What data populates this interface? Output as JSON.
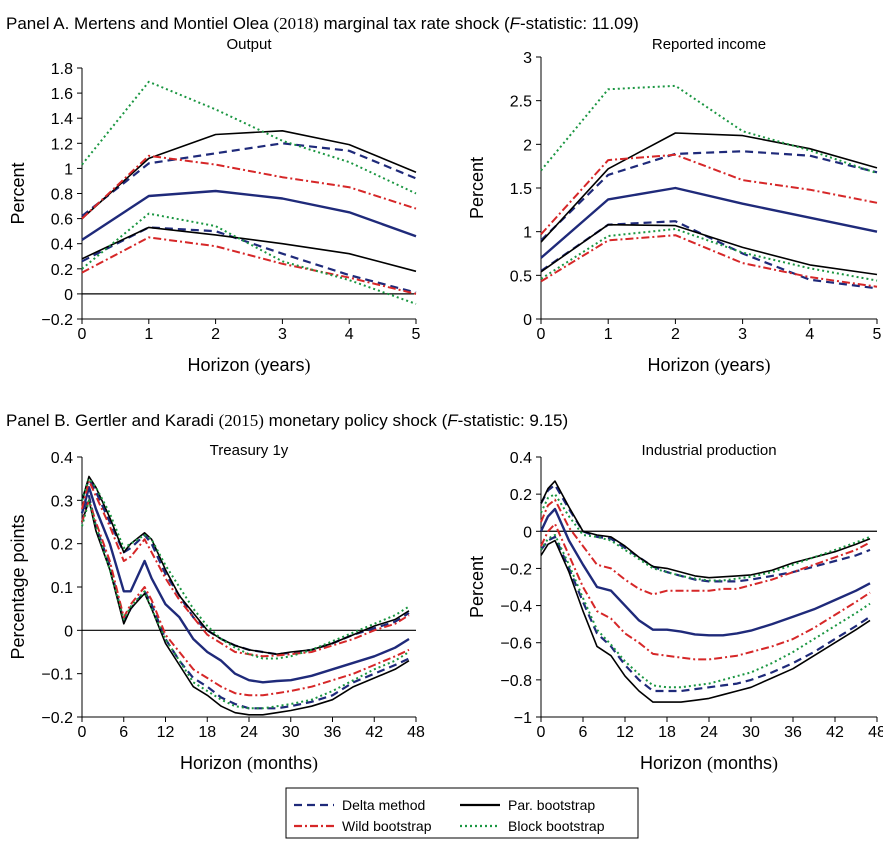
{
  "panel_a": {
    "title_prefix": "Panel A. Mertens and Montiel Olea ",
    "title_year": "(2018)",
    "title_mid": " marginal tax rate shock (",
    "title_f": "F",
    "title_stat": "-statistic: 11.09)"
  },
  "panel_b": {
    "title_prefix": "Panel B. Gertler and Karadi ",
    "title_year": "(2015)",
    "title_mid": " monetary policy shock (",
    "title_f": "F",
    "title_stat": "-statistic: 9.15)"
  },
  "legend": {
    "items": [
      {
        "label": "Delta method",
        "color": "#1f2a7a",
        "dash": "8,5"
      },
      {
        "label": "Par. bootstrap",
        "color": "#000000",
        "dash": ""
      },
      {
        "label": "Wild bootstrap",
        "color": "#d62728",
        "dash": "8,3,2,3"
      },
      {
        "label": "Block bootstrap",
        "color": "#1a9641",
        "dash": "2,3"
      }
    ]
  },
  "colors": {
    "delta": "#1f2a7a",
    "par": "#000000",
    "wild": "#d62728",
    "block": "#1a9641",
    "point": "#1f2a7a"
  },
  "chart_data": [
    {
      "type": "line",
      "title": "Output",
      "xlabel": "Horizon (years)",
      "ylabel": "Percent",
      "x": [
        0,
        1,
        2,
        3,
        4,
        5
      ],
      "xticks": [
        "0",
        "1",
        "2",
        "3",
        "4",
        "5"
      ],
      "yticks": [
        "1.8",
        "1.6",
        "1.4",
        "1.2",
        "1",
        "0.8",
        "0.6",
        "0.4",
        "0.2",
        "0",
        "−0.2"
      ],
      "xlim": [
        0,
        5
      ],
      "ylim": [
        -0.2,
        1.8
      ],
      "zero_line": true,
      "series": [
        {
          "key": "point",
          "values": [
            0.43,
            0.78,
            0.82,
            0.76,
            0.65,
            0.46
          ]
        },
        {
          "key": "delta",
          "values": [
            0.62,
            1.04,
            1.12,
            1.2,
            1.14,
            0.92
          ]
        },
        {
          "key": "delta",
          "values": [
            0.26,
            0.53,
            0.5,
            0.32,
            0.15,
            0.01
          ]
        },
        {
          "key": "par",
          "values": [
            0.6,
            1.08,
            1.27,
            1.3,
            1.19,
            0.97
          ]
        },
        {
          "key": "par",
          "values": [
            0.28,
            0.53,
            0.47,
            0.4,
            0.32,
            0.18
          ]
        },
        {
          "key": "wild",
          "values": [
            0.6,
            1.1,
            1.03,
            0.93,
            0.85,
            0.68
          ]
        },
        {
          "key": "wild",
          "values": [
            0.17,
            0.45,
            0.38,
            0.24,
            0.13,
            0.0
          ]
        },
        {
          "key": "block",
          "values": [
            1.03,
            1.69,
            1.47,
            1.22,
            1.05,
            0.8
          ]
        },
        {
          "key": "block",
          "values": [
            0.2,
            0.64,
            0.54,
            0.26,
            0.11,
            -0.08
          ]
        }
      ]
    },
    {
      "type": "line",
      "title": "Reported income",
      "xlabel": "Horizon (years)",
      "ylabel": "Percent",
      "x": [
        0,
        1,
        2,
        3,
        4,
        5
      ],
      "xticks": [
        "0",
        "1",
        "2",
        "3",
        "4",
        "5"
      ],
      "yticks": [
        "3",
        "2.5",
        "2",
        "1.5",
        "1",
        "0.5",
        "0"
      ],
      "xlim": [
        0,
        5
      ],
      "ylim": [
        0,
        3
      ],
      "zero_line": false,
      "series": [
        {
          "key": "point",
          "values": [
            0.7,
            1.37,
            1.5,
            1.32,
            1.16,
            1.0
          ]
        },
        {
          "key": "delta",
          "values": [
            0.9,
            1.65,
            1.89,
            1.92,
            1.87,
            1.68
          ]
        },
        {
          "key": "delta",
          "values": [
            0.55,
            1.08,
            1.12,
            0.75,
            0.45,
            0.35
          ]
        },
        {
          "key": "par",
          "values": [
            0.88,
            1.72,
            2.13,
            2.1,
            1.95,
            1.73
          ]
        },
        {
          "key": "par",
          "values": [
            0.54,
            1.08,
            1.07,
            0.82,
            0.62,
            0.51
          ]
        },
        {
          "key": "wild",
          "values": [
            0.97,
            1.82,
            1.88,
            1.59,
            1.48,
            1.33
          ]
        },
        {
          "key": "wild",
          "values": [
            0.43,
            0.9,
            0.96,
            0.64,
            0.48,
            0.37
          ]
        },
        {
          "key": "block",
          "values": [
            1.7,
            2.63,
            2.67,
            2.15,
            1.93,
            1.67
          ]
        },
        {
          "key": "block",
          "values": [
            0.46,
            0.95,
            1.03,
            0.76,
            0.58,
            0.44
          ]
        }
      ]
    },
    {
      "type": "line",
      "title": "Treasury 1y",
      "xlabel": "Horizon (months)",
      "ylabel": "Percentage points",
      "x": [
        0,
        1,
        2,
        4,
        6,
        7,
        9,
        10,
        12,
        14,
        16,
        18,
        20,
        22,
        24,
        26,
        28,
        30,
        33,
        36,
        39,
        42,
        45,
        47
      ],
      "xticks": [
        "0",
        "6",
        "12",
        "18",
        "24",
        "30",
        "36",
        "42",
        "48"
      ],
      "xtick_values": [
        0,
        6,
        12,
        18,
        24,
        30,
        36,
        42,
        48
      ],
      "yticks": [
        "0.4",
        "0.3",
        "0.2",
        "0.1",
        "0",
        "−0.1",
        "−0.2"
      ],
      "xlim": [
        0,
        48
      ],
      "ylim": [
        -0.2,
        0.4
      ],
      "zero_line": true,
      "series": [
        {
          "key": "point",
          "values": [
            0.27,
            0.33,
            0.28,
            0.2,
            0.09,
            0.09,
            0.16,
            0.12,
            0.06,
            0.03,
            -0.02,
            -0.05,
            -0.07,
            -0.1,
            -0.115,
            -0.12,
            -0.117,
            -0.115,
            -0.105,
            -0.09,
            -0.075,
            -0.06,
            -0.04,
            -0.02
          ]
        },
        {
          "key": "delta",
          "values": [
            0.3,
            0.35,
            0.32,
            0.25,
            0.18,
            0.19,
            0.22,
            0.2,
            0.13,
            0.08,
            0.03,
            0.0,
            -0.02,
            -0.035,
            -0.045,
            -0.05,
            -0.055,
            -0.052,
            -0.045,
            -0.03,
            -0.01,
            0.005,
            0.02,
            0.04
          ]
        },
        {
          "key": "delta",
          "values": [
            0.25,
            0.31,
            0.24,
            0.15,
            0.02,
            0.05,
            0.09,
            0.06,
            -0.02,
            -0.07,
            -0.11,
            -0.13,
            -0.155,
            -0.17,
            -0.18,
            -0.18,
            -0.18,
            -0.175,
            -0.165,
            -0.15,
            -0.12,
            -0.1,
            -0.08,
            -0.065
          ]
        },
        {
          "key": "par",
          "values": [
            0.3,
            0.355,
            0.33,
            0.26,
            0.18,
            0.2,
            0.225,
            0.21,
            0.14,
            0.08,
            0.04,
            0.0,
            -0.02,
            -0.035,
            -0.045,
            -0.05,
            -0.055,
            -0.05,
            -0.045,
            -0.03,
            -0.01,
            0.01,
            0.025,
            0.045
          ]
        },
        {
          "key": "par",
          "values": [
            0.25,
            0.3,
            0.23,
            0.14,
            0.015,
            0.05,
            0.085,
            0.05,
            -0.03,
            -0.08,
            -0.13,
            -0.15,
            -0.175,
            -0.19,
            -0.195,
            -0.195,
            -0.19,
            -0.185,
            -0.175,
            -0.16,
            -0.13,
            -0.11,
            -0.09,
            -0.07
          ]
        },
        {
          "key": "wild",
          "values": [
            0.28,
            0.345,
            0.31,
            0.24,
            0.16,
            0.17,
            0.21,
            0.18,
            0.12,
            0.07,
            0.03,
            -0.01,
            -0.03,
            -0.05,
            -0.055,
            -0.06,
            -0.058,
            -0.055,
            -0.05,
            -0.035,
            -0.02,
            0.0,
            0.015,
            0.035
          ]
        },
        {
          "key": "wild",
          "values": [
            0.25,
            0.3,
            0.25,
            0.16,
            0.03,
            0.06,
            0.1,
            0.07,
            -0.01,
            -0.05,
            -0.09,
            -0.11,
            -0.13,
            -0.145,
            -0.15,
            -0.15,
            -0.145,
            -0.14,
            -0.13,
            -0.115,
            -0.1,
            -0.08,
            -0.06,
            -0.045
          ]
        },
        {
          "key": "block",
          "values": [
            0.3,
            0.35,
            0.33,
            0.27,
            0.19,
            0.2,
            0.22,
            0.21,
            0.15,
            0.1,
            0.05,
            0.01,
            -0.02,
            -0.04,
            -0.055,
            -0.065,
            -0.065,
            -0.06,
            -0.045,
            -0.025,
            -0.005,
            0.015,
            0.035,
            0.055
          ]
        },
        {
          "key": "block",
          "values": [
            0.24,
            0.3,
            0.24,
            0.14,
            0.025,
            0.055,
            0.09,
            0.05,
            -0.02,
            -0.07,
            -0.12,
            -0.14,
            -0.16,
            -0.175,
            -0.18,
            -0.18,
            -0.175,
            -0.17,
            -0.16,
            -0.14,
            -0.115,
            -0.09,
            -0.07,
            -0.05
          ]
        }
      ]
    },
    {
      "type": "line",
      "title": "Industrial production",
      "xlabel": "Horizon (months)",
      "ylabel": "Percent",
      "x": [
        0,
        1,
        2,
        4,
        6,
        8,
        10,
        12,
        14,
        16,
        18,
        20,
        22,
        24,
        26,
        28,
        30,
        33,
        36,
        39,
        42,
        45,
        47
      ],
      "xticks": [
        "0",
        "6",
        "12",
        "18",
        "24",
        "30",
        "36",
        "42",
        "48"
      ],
      "xtick_values": [
        0,
        6,
        12,
        18,
        24,
        30,
        36,
        42,
        48
      ],
      "yticks": [
        "0.4",
        "0.2",
        "0",
        "−0.2",
        "−0.4",
        "−0.6",
        "−0.8",
        "−1"
      ],
      "xlim": [
        0,
        48
      ],
      "ylim": [
        -1,
        0.4
      ],
      "zero_line": true,
      "series": [
        {
          "key": "point",
          "values": [
            0.0,
            0.08,
            0.12,
            -0.05,
            -0.18,
            -0.3,
            -0.32,
            -0.4,
            -0.48,
            -0.53,
            -0.53,
            -0.54,
            -0.555,
            -0.56,
            -0.56,
            -0.55,
            -0.535,
            -0.5,
            -0.46,
            -0.42,
            -0.37,
            -0.32,
            -0.28
          ]
        },
        {
          "key": "delta",
          "values": [
            0.15,
            0.22,
            0.25,
            0.12,
            0.0,
            -0.03,
            -0.04,
            -0.09,
            -0.14,
            -0.19,
            -0.22,
            -0.24,
            -0.26,
            -0.27,
            -0.27,
            -0.27,
            -0.26,
            -0.24,
            -0.22,
            -0.19,
            -0.16,
            -0.13,
            -0.1
          ]
        },
        {
          "key": "delta",
          "values": [
            -0.1,
            -0.05,
            -0.03,
            -0.2,
            -0.38,
            -0.55,
            -0.62,
            -0.72,
            -0.8,
            -0.86,
            -0.86,
            -0.86,
            -0.85,
            -0.84,
            -0.83,
            -0.82,
            -0.8,
            -0.76,
            -0.71,
            -0.65,
            -0.58,
            -0.51,
            -0.46
          ]
        },
        {
          "key": "par",
          "values": [
            0.15,
            0.23,
            0.27,
            0.13,
            0.0,
            -0.02,
            -0.03,
            -0.08,
            -0.14,
            -0.19,
            -0.2,
            -0.22,
            -0.24,
            -0.25,
            -0.245,
            -0.24,
            -0.235,
            -0.21,
            -0.17,
            -0.14,
            -0.11,
            -0.07,
            -0.04
          ]
        },
        {
          "key": "par",
          "values": [
            -0.13,
            -0.07,
            -0.05,
            -0.22,
            -0.43,
            -0.62,
            -0.67,
            -0.78,
            -0.86,
            -0.92,
            -0.92,
            -0.92,
            -0.91,
            -0.9,
            -0.88,
            -0.86,
            -0.84,
            -0.79,
            -0.74,
            -0.67,
            -0.6,
            -0.53,
            -0.48
          ]
        },
        {
          "key": "wild",
          "values": [
            0.05,
            0.14,
            0.17,
            0.02,
            -0.08,
            -0.18,
            -0.2,
            -0.26,
            -0.31,
            -0.34,
            -0.32,
            -0.32,
            -0.32,
            -0.32,
            -0.31,
            -0.31,
            -0.29,
            -0.26,
            -0.22,
            -0.18,
            -0.14,
            -0.1,
            -0.06
          ]
        },
        {
          "key": "wild",
          "values": [
            -0.08,
            0.0,
            0.04,
            -0.13,
            -0.3,
            -0.43,
            -0.47,
            -0.55,
            -0.6,
            -0.66,
            -0.67,
            -0.68,
            -0.69,
            -0.69,
            -0.68,
            -0.67,
            -0.65,
            -0.62,
            -0.58,
            -0.52,
            -0.45,
            -0.38,
            -0.33
          ]
        },
        {
          "key": "block",
          "values": [
            0.1,
            0.18,
            0.2,
            0.08,
            -0.02,
            -0.03,
            -0.05,
            -0.1,
            -0.15,
            -0.2,
            -0.22,
            -0.24,
            -0.255,
            -0.265,
            -0.265,
            -0.255,
            -0.245,
            -0.22,
            -0.18,
            -0.14,
            -0.1,
            -0.06,
            -0.03
          ]
        },
        {
          "key": "block",
          "values": [
            -0.1,
            -0.04,
            -0.02,
            -0.18,
            -0.36,
            -0.53,
            -0.61,
            -0.7,
            -0.77,
            -0.83,
            -0.84,
            -0.84,
            -0.83,
            -0.82,
            -0.8,
            -0.78,
            -0.76,
            -0.71,
            -0.65,
            -0.58,
            -0.51,
            -0.44,
            -0.39
          ]
        }
      ]
    }
  ]
}
